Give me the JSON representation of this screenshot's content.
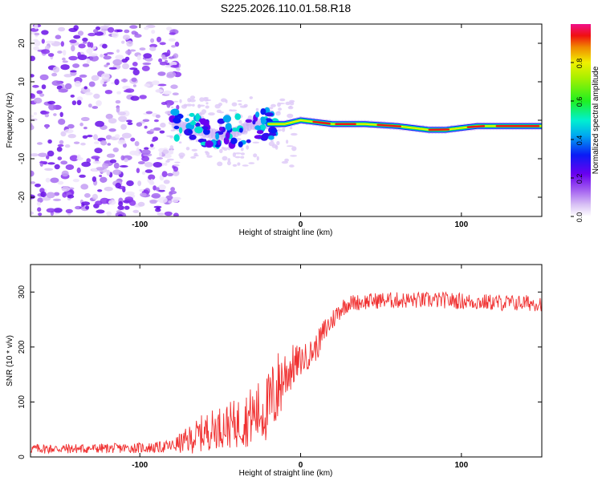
{
  "title": "S225.2026.110.01.58.R18",
  "chart_data": [
    {
      "type": "heatmap",
      "xlabel": "Height of straight line (km)",
      "ylabel": "Frequency (Hz)",
      "xlim": [
        -168,
        150
      ],
      "ylim": [
        -25,
        25
      ],
      "xticks": [
        -100,
        0,
        100
      ],
      "yticks": [
        -20,
        -10,
        0,
        10,
        20
      ],
      "noise_region_x": [
        -168,
        -80
      ],
      "transition_region_x": [
        -80,
        -15
      ],
      "signal_track": {
        "x": [
          -80,
          -70,
          -60,
          -50,
          -40,
          -30,
          -20,
          -10,
          0,
          10,
          20,
          40,
          60,
          80,
          90,
          100,
          110,
          120,
          150
        ],
        "freq_hz": [
          -1,
          -2,
          -3,
          -4,
          -3,
          -1,
          -1,
          -1,
          0,
          -0.5,
          -1,
          -1,
          -1.5,
          -2.5,
          -2.5,
          -2,
          -1.5,
          -1.5,
          -1.5
        ]
      },
      "colorbar": {
        "label": "Normalized spectral amplitude",
        "range": [
          0,
          1
        ],
        "ticks": [
          "0.0",
          "0.2",
          "0.4",
          "0.6",
          "0.8"
        ]
      }
    },
    {
      "type": "line",
      "xlabel": "Height of straight line (km)",
      "ylabel": "SNR (10 * v/v)",
      "xlim": [
        -168,
        150
      ],
      "ylim": [
        0,
        350
      ],
      "xticks": [
        -100,
        0,
        100
      ],
      "yticks": [
        0,
        100,
        200,
        300
      ],
      "series": [
        {
          "name": "SNR",
          "color": "#f03030",
          "x": [
            -168,
            -140,
            -110,
            -90,
            -80,
            -70,
            -60,
            -50,
            -40,
            -30,
            -20,
            -15,
            -10,
            -5,
            0,
            5,
            10,
            15,
            20,
            25,
            30,
            50,
            70,
            90,
            110,
            130,
            150
          ],
          "mean": [
            15,
            15,
            16,
            17,
            20,
            30,
            45,
            55,
            60,
            75,
            90,
            120,
            150,
            165,
            175,
            185,
            200,
            230,
            250,
            270,
            280,
            285,
            285,
            285,
            282,
            280,
            280
          ],
          "spread": [
            9,
            9,
            9,
            10,
            12,
            25,
            35,
            38,
            45,
            55,
            65,
            75,
            55,
            40,
            28,
            25,
            25,
            25,
            20,
            18,
            15,
            15,
            15,
            15,
            15,
            15,
            15
          ]
        }
      ]
    }
  ]
}
